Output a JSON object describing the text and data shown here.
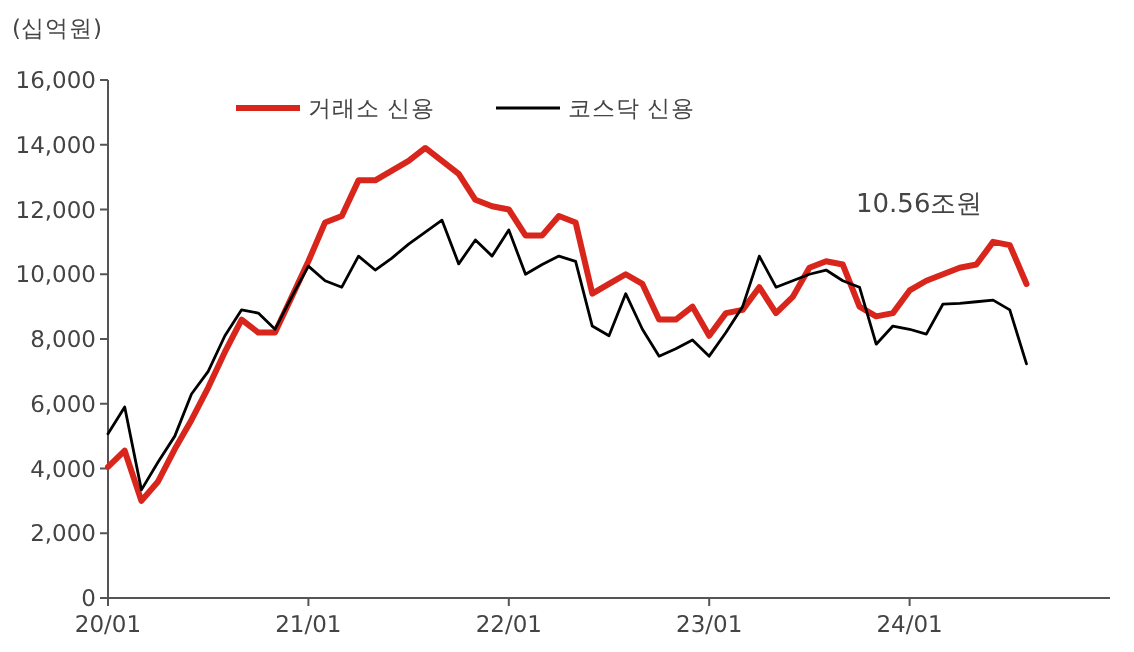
{
  "chart_data": {
    "type": "line",
    "ylabel": "(십억원)",
    "annotations": [
      "10.56조원"
    ],
    "legend": "top",
    "categories": [
      "20/01",
      null,
      null,
      null,
      null,
      null,
      null,
      null,
      null,
      null,
      null,
      null,
      "21/01",
      null,
      null,
      null,
      null,
      null,
      null,
      null,
      null,
      null,
      null,
      null,
      "22/01",
      null,
      null,
      null,
      null,
      null,
      null,
      null,
      null,
      null,
      null,
      null,
      "23/01",
      null,
      null,
      null,
      null,
      null,
      null,
      null,
      null,
      null,
      null,
      null,
      "24/01",
      null,
      null,
      null,
      null,
      null,
      null,
      null,
      null,
      null,
      null,
      null
    ],
    "ylim": [
      0,
      16000
    ],
    "yticks": [
      {
        "value": 0,
        "label": "0"
      },
      {
        "value": 2000,
        "label": "2,000"
      },
      {
        "value": 4000,
        "label": "4,000"
      },
      {
        "value": 6000,
        "label": "6,000"
      },
      {
        "value": 8000,
        "label": "8,000"
      },
      {
        "value": 10000,
        "label": "10,000"
      },
      {
        "value": 12000,
        "label": "12,000"
      },
      {
        "value": 14000,
        "label": "14,000"
      },
      {
        "value": 16000,
        "label": "16,000"
      }
    ],
    "series": [
      {
        "name": "거래소 신용",
        "color": "#d9261c",
        "values": [
          4050,
          4550,
          3000,
          3600,
          4600,
          5500,
          6500,
          7600,
          8600,
          8200,
          8200,
          9300,
          10400,
          11600,
          11800,
          12900,
          12900,
          13200,
          13500,
          13900,
          13500,
          13100,
          12300,
          12100,
          12000,
          11200,
          11200,
          11800,
          11600,
          9400,
          9700,
          10000,
          9700,
          8600,
          8600,
          9000,
          8100,
          8800,
          8900,
          9600,
          8800,
          9300,
          10200,
          10400,
          10300,
          9000,
          8700,
          8800,
          9500,
          9800,
          10000,
          10200,
          10300,
          11000,
          10900,
          9700,
          null,
          null,
          null,
          null
        ]
      },
      {
        "name": "코스닥 신용",
        "color": "#000000",
        "values": [
          5070,
          5900,
          3340,
          4200,
          5000,
          6300,
          7000,
          8100,
          8900,
          8800,
          8300,
          9300,
          10250,
          9800,
          9600,
          10560,
          10130,
          10500,
          10930,
          11300,
          11670,
          10320,
          11060,
          10560,
          11370,
          10000,
          10300,
          10560,
          10400,
          8400,
          8100,
          9400,
          8300,
          7470,
          7700,
          7970,
          7470,
          8200,
          9000,
          10560,
          9600,
          9800,
          10000,
          10130,
          9800,
          9600,
          7840,
          8400,
          8300,
          8150,
          9080,
          9100,
          9150,
          9200,
          8900,
          7230,
          null,
          null,
          null,
          null
        ]
      }
    ]
  }
}
